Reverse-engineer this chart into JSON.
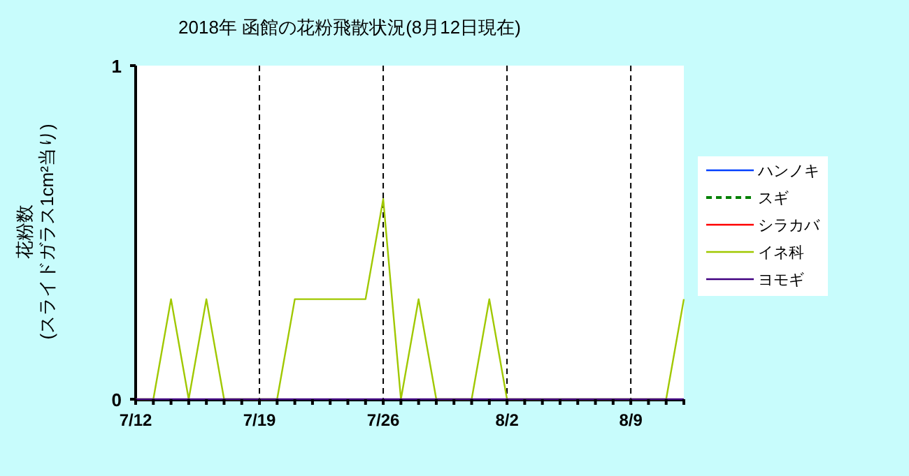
{
  "chart_data": {
    "type": "line",
    "title": "2018年 函館の花粉飛散状況(8月12日現在)",
    "ylabel": "花粉数\n(スライドガラス1cm²当り)",
    "x": [
      "--07-12",
      "--07-13",
      "--07-14",
      "--07-15",
      "--07-16",
      "--07-17",
      "--07-18",
      "--07-19",
      "--07-20",
      "--07-21",
      "--07-22",
      "--07-23",
      "--07-24",
      "--07-25",
      "--07-26",
      "--07-27",
      "--07-28",
      "--07-29",
      "--07-30",
      "--07-31",
      "--08-01",
      "--08-02",
      "--08-03",
      "--08-04",
      "--08-05",
      "--08-06",
      "--08-07",
      "--08-08",
      "--08-09",
      "--08-10",
      "--08-11",
      "--08-12"
    ],
    "series": [
      {
        "name": "ハンノキ",
        "color": "#0040ff",
        "line_style": "solid",
        "values": [
          null,
          null,
          null,
          null,
          null,
          null,
          null,
          null,
          null,
          null,
          null,
          null,
          null,
          null,
          null,
          null,
          null,
          null,
          null,
          null,
          null,
          null,
          null,
          null,
          null,
          null,
          null,
          null,
          null,
          null,
          null,
          null
        ]
      },
      {
        "name": "スギ",
        "color": "#008000",
        "line_style": "dashed",
        "values": [
          null,
          null,
          null,
          null,
          null,
          null,
          null,
          null,
          null,
          null,
          null,
          null,
          null,
          null,
          null,
          null,
          null,
          null,
          null,
          null,
          null,
          null,
          null,
          null,
          null,
          null,
          null,
          null,
          null,
          null,
          null,
          null
        ]
      },
      {
        "name": "シラカバ",
        "color": "#ff0000",
        "line_style": "solid",
        "values": [
          null,
          null,
          null,
          null,
          null,
          null,
          null,
          null,
          null,
          null,
          null,
          null,
          null,
          null,
          null,
          null,
          null,
          null,
          null,
          null,
          null,
          null,
          null,
          null,
          null,
          null,
          null,
          null,
          null,
          null,
          null,
          null
        ]
      },
      {
        "name": "イネ科",
        "color": "#a0c800",
        "line_style": "solid",
        "values": [
          0,
          0,
          0.3,
          0,
          0.3,
          0,
          0,
          0,
          0,
          0.3,
          0.3,
          0.3,
          0.3,
          0.3,
          0.6,
          0,
          0.3,
          0,
          0,
          0,
          0.3,
          0,
          0,
          0,
          0,
          0,
          0,
          0,
          0,
          0,
          0,
          0.3
        ]
      },
      {
        "name": "ヨモギ",
        "color": "#400080",
        "line_style": "solid",
        "values": [
          0,
          0,
          0,
          0,
          0,
          0,
          0,
          0,
          0,
          0,
          0,
          0,
          0,
          0,
          0,
          0,
          0,
          0,
          0,
          0,
          0,
          0,
          0,
          0,
          0,
          0,
          0,
          0,
          0,
          0,
          0,
          0
        ]
      }
    ],
    "xlim": [
      "--07-12",
      "--08-12"
    ],
    "xticks": [
      {
        "value": "--07-12",
        "label": "7/12"
      },
      {
        "value": "--07-13",
        "label": null
      },
      {
        "value": "--07-14",
        "label": null
      },
      {
        "value": "--07-15",
        "label": null
      },
      {
        "value": "--07-16",
        "label": null
      },
      {
        "value": "--07-17",
        "label": null
      },
      {
        "value": "--07-18",
        "label": null
      },
      {
        "value": "--07-19",
        "label": "7/19"
      },
      {
        "value": "--07-20",
        "label": null
      },
      {
        "value": "--07-21",
        "label": null
      },
      {
        "value": "--07-22",
        "label": null
      },
      {
        "value": "--07-23",
        "label": null
      },
      {
        "value": "--07-24",
        "label": null
      },
      {
        "value": "--07-25",
        "label": null
      },
      {
        "value": "--07-26",
        "label": "7/26"
      },
      {
        "value": "--07-27",
        "label": null
      },
      {
        "value": "--07-28",
        "label": null
      },
      {
        "value": "--07-29",
        "label": null
      },
      {
        "value": "--07-30",
        "label": null
      },
      {
        "value": "--07-31",
        "label": null
      },
      {
        "value": "--08-01",
        "label": null
      },
      {
        "value": "--08-02",
        "label": "8/2"
      },
      {
        "value": "--08-03",
        "label": null
      },
      {
        "value": "--08-04",
        "label": null
      },
      {
        "value": "--08-05",
        "label": null
      },
      {
        "value": "--08-06",
        "label": null
      },
      {
        "value": "--08-07",
        "label": null
      },
      {
        "value": "--08-08",
        "label": null
      },
      {
        "value": "--08-09",
        "label": "8/9"
      },
      {
        "value": "--08-10",
        "label": null
      },
      {
        "value": "--08-11",
        "label": null
      },
      {
        "value": "--08-12",
        "label": null
      }
    ],
    "ylim": [
      0,
      1
    ],
    "yticks": [
      0,
      1
    ],
    "ref_lines": [
      {
        "axis": "x",
        "value": "--07-19",
        "line_style": "dashed",
        "color": "#000000"
      },
      {
        "axis": "x",
        "value": "--07-26",
        "line_style": "dashed",
        "color": "#000000"
      },
      {
        "axis": "x",
        "value": "--08-02",
        "line_style": "dashed",
        "color": "#000000"
      },
      {
        "axis": "x",
        "value": "--08-09",
        "line_style": "dashed",
        "color": "#000000"
      }
    ],
    "grid": false,
    "legend": "right",
    "marker": "none"
  }
}
